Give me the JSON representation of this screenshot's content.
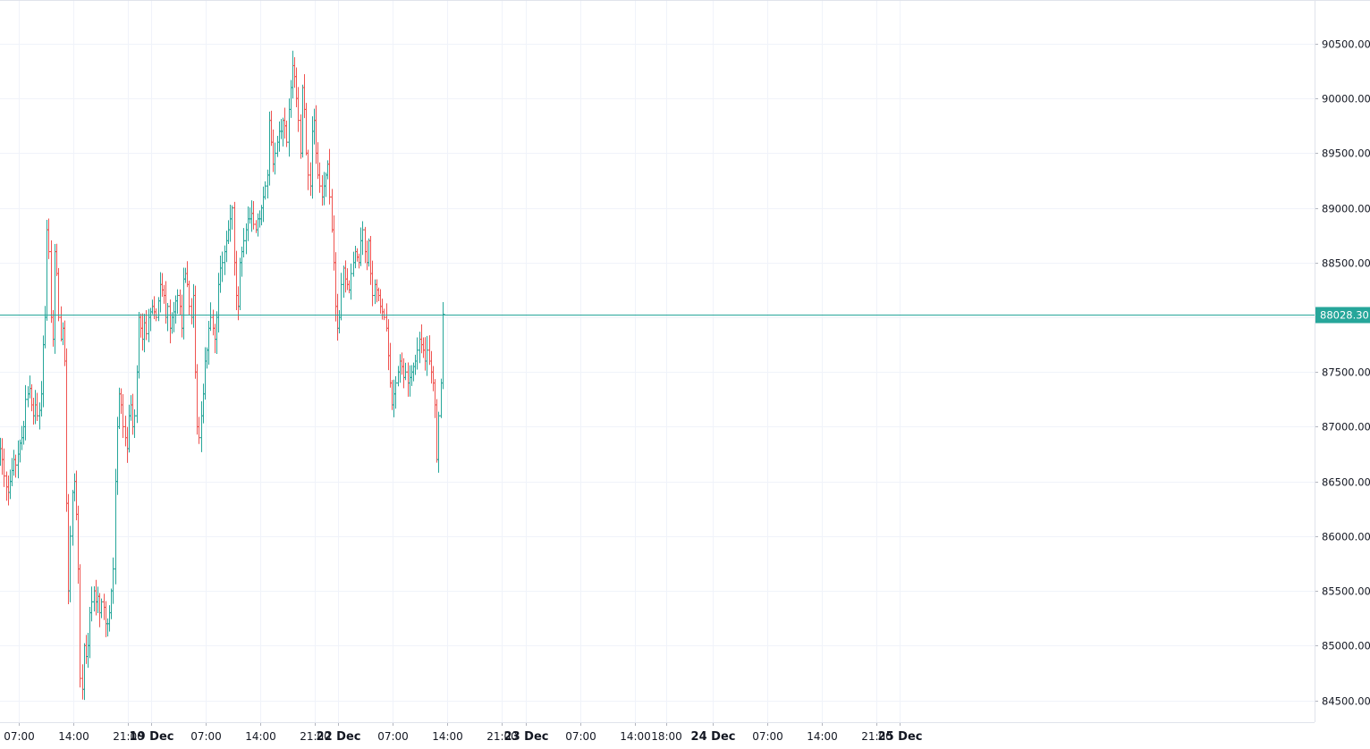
{
  "chart_data": {
    "type": "ohlc",
    "y_axis": {
      "position": "right",
      "ylim": [
        84300,
        90900
      ],
      "ticks": [
        84500,
        85000,
        85500,
        86000,
        86500,
        87000,
        87500,
        88000,
        88500,
        89000,
        89500,
        90000,
        90500
      ],
      "tick_labels": [
        "84500.00",
        "85000.00",
        "85500.00",
        "86000.00",
        "86500.00",
        "87000.00",
        "87500.00",
        "88000.00",
        "88500.00",
        "89000.00",
        "89500.00",
        "90000.00",
        "90500.00"
      ]
    },
    "x_axis": {
      "units": "hours since 18 Dec 00:00",
      "xlim": [
        4.6,
        173.2
      ],
      "ticks": [
        {
          "t": 7,
          "label": "07:00",
          "bold": false
        },
        {
          "t": 14,
          "label": "14:00",
          "bold": false
        },
        {
          "t": 21,
          "label": "21:00",
          "bold": false
        },
        {
          "t": 24,
          "label": "19 Dec",
          "bold": true
        },
        {
          "t": 31,
          "label": "07:00",
          "bold": false
        },
        {
          "t": 38,
          "label": "14:00",
          "bold": false
        },
        {
          "t": 45,
          "label": "21:00",
          "bold": false
        },
        {
          "t": 48,
          "label": "22 Dec",
          "bold": true
        },
        {
          "t": 55,
          "label": "07:00",
          "bold": false
        },
        {
          "t": 62,
          "label": "14:00",
          "bold": false
        },
        {
          "t": 69,
          "label": "21:00",
          "bold": false
        },
        {
          "t": 72,
          "label": "23 Dec",
          "bold": true
        },
        {
          "t": 79,
          "label": "07:00",
          "bold": false
        },
        {
          "t": 86,
          "label": "14:00",
          "bold": false
        },
        {
          "t": 90,
          "label": "18:00",
          "bold": false
        },
        {
          "t": 96,
          "label": "24 Dec",
          "bold": true
        },
        {
          "t": 103,
          "label": "07:00",
          "bold": false
        },
        {
          "t": 110,
          "label": "14:00",
          "bold": false
        },
        {
          "t": 117,
          "label": "21:00",
          "bold": false
        },
        {
          "t": 120,
          "label": "25 Dec",
          "bold": true
        }
      ]
    },
    "last_price": {
      "value": 88028.3,
      "label": "88028.30",
      "color": "#26a69a"
    },
    "colors": {
      "up": "#26a69a",
      "down": "#ef5350",
      "grid": "#f0f3fa",
      "axis_text": "#131722",
      "border": "#e0e3eb"
    },
    "grid": true,
    "bars_start_hour": 4.6,
    "bar_interval_hours": 0.25,
    "closes": [
      86800,
      86700,
      86550,
      86450,
      86400,
      86500,
      86600,
      86700,
      86650,
      86750,
      86850,
      86900,
      87000,
      87250,
      87300,
      87350,
      87200,
      87100,
      87200,
      87100,
      87150,
      87300,
      87750,
      88000,
      88800,
      88600,
      88000,
      87800,
      88600,
      88400,
      88000,
      87800,
      87900,
      87600,
      86300,
      85500,
      86000,
      86400,
      86500,
      86200,
      85700,
      84700,
      84600,
      85000,
      84900,
      85000,
      85300,
      85400,
      85500,
      85400,
      85450,
      85300,
      85400,
      85350,
      85200,
      85200,
      85300,
      85500,
      85700,
      86500,
      87000,
      87300,
      87200,
      87000,
      86900,
      86800,
      87100,
      87200,
      87000,
      87100,
      87500,
      88000,
      87900,
      87800,
      87950,
      87850,
      88000,
      88050,
      88100,
      88050,
      88000,
      88150,
      88300,
      88250,
      88200,
      88000,
      88100,
      87900,
      88000,
      88050,
      88150,
      88200,
      88100,
      87900,
      88350,
      88400,
      88300,
      88100,
      88000,
      88200,
      87500,
      87000,
      86900,
      87100,
      87300,
      87600,
      87700,
      87900,
      88000,
      87900,
      87800,
      88000,
      88300,
      88450,
      88500,
      88600,
      88700,
      88800,
      88900,
      89000,
      88500,
      88200,
      88100,
      88500,
      88600,
      88700,
      88800,
      88900,
      88900,
      88950,
      88850,
      88800,
      88900,
      88900,
      89000,
      89100,
      89200,
      89300,
      89800,
      89600,
      89400,
      89500,
      89600,
      89700,
      89700,
      89800,
      89750,
      89600,
      89900,
      90100,
      90300,
      90200,
      90000,
      89800,
      89500,
      90100,
      89900,
      89500,
      89300,
      89200,
      89700,
      89800,
      89500,
      89300,
      89200,
      89100,
      89200,
      89300,
      89400,
      89100,
      88800,
      88500,
      88100,
      87900,
      88000,
      88300,
      88450,
      88350,
      88300,
      88250,
      88400,
      88500,
      88600,
      88550,
      88500,
      88700,
      88800,
      88600,
      88500,
      88700,
      88400,
      88200,
      88300,
      88250,
      88200,
      88100,
      88050,
      88000,
      87900,
      87650,
      87400,
      87200,
      87300,
      87400,
      87500,
      87600,
      87550,
      87450,
      87500,
      87400,
      87450,
      87500,
      87550,
      87600,
      87700,
      87800,
      87750,
      87700,
      87600,
      87700,
      87600,
      87500,
      87400,
      87200,
      86700,
      87100,
      87400,
      88028.3
    ]
  }
}
